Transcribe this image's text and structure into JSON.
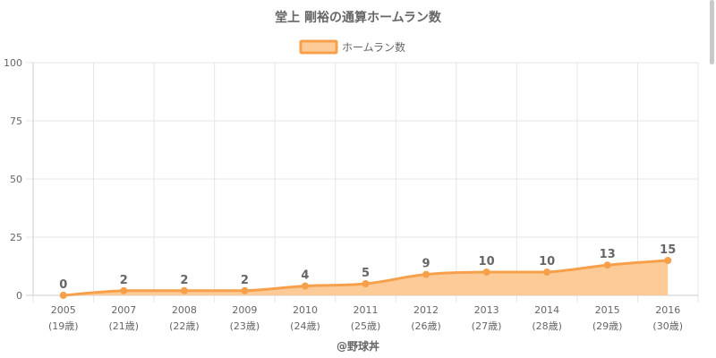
{
  "colors": {
    "line": "#f7a04b",
    "fill": "#fdcb98",
    "grid": "#e6e6e6",
    "text": "#666666"
  },
  "chart_data": {
    "type": "area",
    "title": "堂上 剛裕の通算ホームラン数",
    "legend": {
      "position": "top-center"
    },
    "categories": [
      "2005",
      "2007",
      "2008",
      "2009",
      "2010",
      "2011",
      "2012",
      "2013",
      "2014",
      "2015",
      "2016"
    ],
    "category_sublabels": [
      "(19歳)",
      "(21歳)",
      "(22歳)",
      "(23歳)",
      "(24歳)",
      "(25歳)",
      "(26歳)",
      "(27歳)",
      "(28歳)",
      "(29歳)",
      "(30歳)"
    ],
    "series": [
      {
        "name": "ホームラン数",
        "values": [
          0,
          2,
          2,
          2,
          4,
          5,
          9,
          10,
          10,
          13,
          15
        ]
      }
    ],
    "ylim": [
      0,
      100
    ],
    "yticks": [
      0,
      25,
      50,
      75,
      100
    ],
    "grid": true,
    "data_labels": true
  },
  "credit": "@野球丼"
}
